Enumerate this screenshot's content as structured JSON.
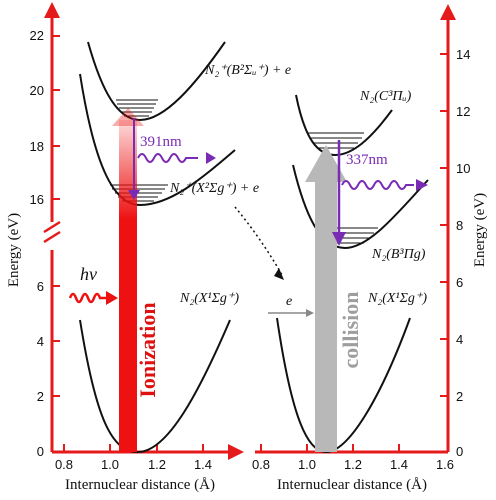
{
  "left_panel": {
    "y_axis_label": "Energy (eV)",
    "x_axis_label": "Internuclear distance (Å)",
    "y_ticks_upper": [
      "22",
      "20",
      "18",
      "16"
    ],
    "y_ticks_lower": [
      "6",
      "4",
      "2",
      "0"
    ],
    "x_ticks": [
      "0.8",
      "1.0",
      "1.2",
      "1.4"
    ],
    "state_upper": "N₂⁺(B²Σᵤ⁺) + e",
    "state_middle": "N₂⁺(X²Σg⁺) + e",
    "state_ground": "N₂(X¹Σg⁺)",
    "emission_label": "391nm",
    "photon_label": "hν",
    "process_label": "Ionization"
  },
  "right_panel": {
    "y_axis_label": "Energy (eV)",
    "x_axis_label": "Internuclear distance (Å)",
    "y_ticks": [
      "14",
      "12",
      "10",
      "8",
      "6",
      "4",
      "2",
      "0"
    ],
    "x_ticks": [
      "0.8",
      "1.0",
      "1.2",
      "1.4",
      "1.6"
    ],
    "state_upper": "N₂(C³Πᵤ)",
    "state_middle": "N₂(B³Πg)",
    "state_ground": "N₂(X¹Σg⁺)",
    "emission_label": "337nm",
    "electron_label": "e",
    "process_label": "collision"
  },
  "colors": {
    "axis": "#e51a1a",
    "ionization": "#ee1111",
    "collision": "#b8b8b8",
    "emission": "#7a2bb3",
    "curve": "#111111"
  }
}
